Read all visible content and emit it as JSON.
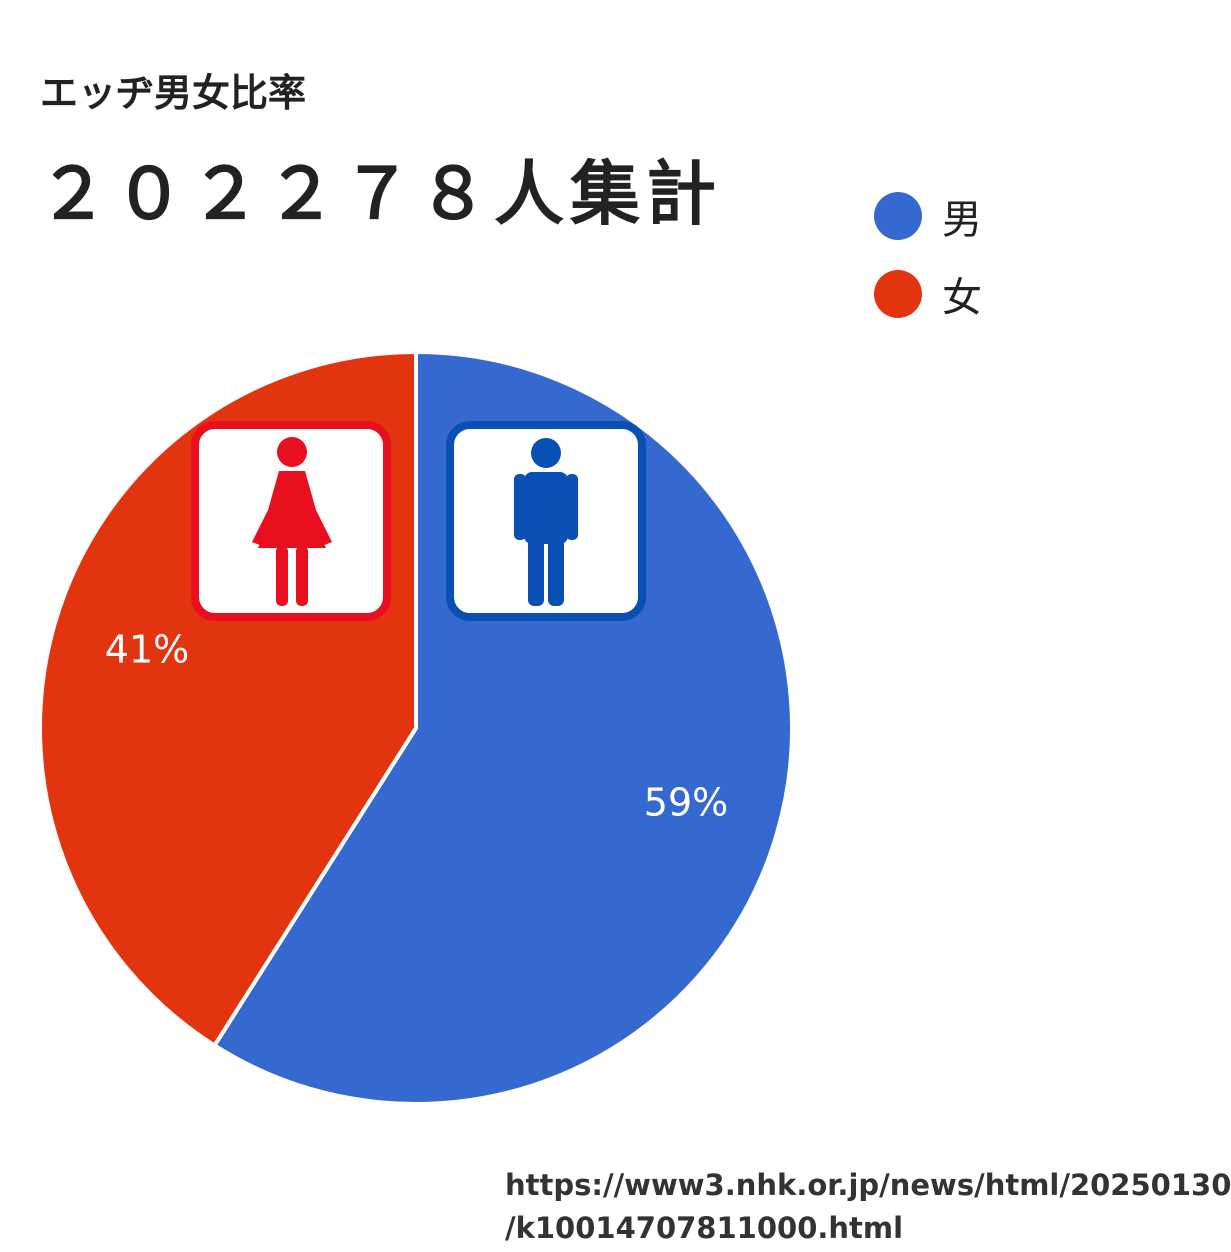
{
  "chart_data": {
    "type": "pie",
    "title": "エッヂ男女比率",
    "subtitle": "２０２２７８人集計",
    "slices": [
      {
        "label": "男",
        "value": 59,
        "value_label": "59%",
        "color": "#3569d0"
      },
      {
        "label": "女",
        "value": 41,
        "value_label": "41%",
        "color": "#e2340f"
      }
    ],
    "legend_position": "top-right",
    "icons": [
      {
        "name": "female-icon",
        "color": "#e8101e"
      },
      {
        "name": "male-icon",
        "color": "#0a50b4"
      }
    ]
  },
  "source": {
    "line1": "https://www3.nhk.or.jp/news/html/20250130",
    "line2": "/k10014707811000.html"
  }
}
